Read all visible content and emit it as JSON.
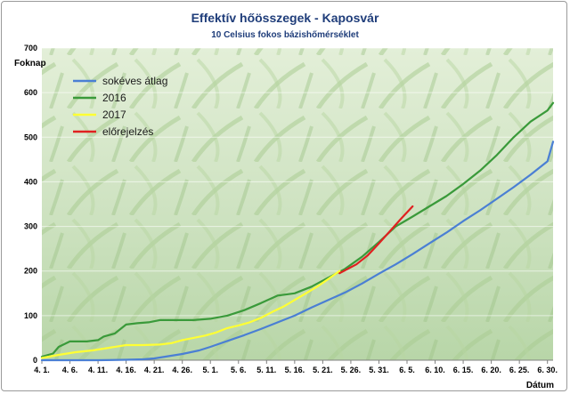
{
  "chart_data": {
    "type": "line",
    "title": "Effektív hőösszegek - Kaposvár",
    "subtitle": "10 Celsius fokos bázishőmérséklet",
    "ylabel": "Foknap",
    "xlabel": "Dátum",
    "ylim": [
      0,
      700
    ],
    "yticks": [
      0,
      100,
      200,
      300,
      400,
      500,
      600,
      700
    ],
    "x_range": [
      0,
      91
    ],
    "x_ticks": [
      {
        "day": 0,
        "label": "4. 1."
      },
      {
        "day": 5,
        "label": "4. 6."
      },
      {
        "day": 10,
        "label": "4. 11."
      },
      {
        "day": 15,
        "label": "4. 16."
      },
      {
        "day": 20,
        "label": "4. 21."
      },
      {
        "day": 25,
        "label": "4. 26."
      },
      {
        "day": 30,
        "label": "5. 1."
      },
      {
        "day": 35,
        "label": "5. 6."
      },
      {
        "day": 40,
        "label": "5. 11."
      },
      {
        "day": 45,
        "label": "5. 16."
      },
      {
        "day": 50,
        "label": "5. 21."
      },
      {
        "day": 55,
        "label": "5. 26."
      },
      {
        "day": 60,
        "label": "5. 31."
      },
      {
        "day": 65,
        "label": "6. 5."
      },
      {
        "day": 70,
        "label": "6. 10."
      },
      {
        "day": 75,
        "label": "6. 15."
      },
      {
        "day": 80,
        "label": "6. 20."
      },
      {
        "day": 85,
        "label": "6. 25."
      },
      {
        "day": 90,
        "label": "6. 30."
      }
    ],
    "legend_position": "top-left",
    "grid": true,
    "series": [
      {
        "name": "sokéves átlag",
        "color": "#4a7fd4",
        "points": [
          [
            0,
            0
          ],
          [
            5,
            0
          ],
          [
            10,
            0
          ],
          [
            15,
            1
          ],
          [
            18,
            2
          ],
          [
            20,
            4
          ],
          [
            22,
            8
          ],
          [
            25,
            14
          ],
          [
            28,
            22
          ],
          [
            30,
            30
          ],
          [
            33,
            43
          ],
          [
            36,
            56
          ],
          [
            39,
            70
          ],
          [
            42,
            85
          ],
          [
            45,
            100
          ],
          [
            48,
            118
          ],
          [
            51,
            135
          ],
          [
            54,
            152
          ],
          [
            57,
            172
          ],
          [
            60,
            194
          ],
          [
            63,
            215
          ],
          [
            66,
            238
          ],
          [
            69,
            262
          ],
          [
            72,
            286
          ],
          [
            75,
            312
          ],
          [
            78,
            336
          ],
          [
            81,
            362
          ],
          [
            84,
            388
          ],
          [
            87,
            416
          ],
          [
            90,
            446
          ],
          [
            91,
            490
          ]
        ]
      },
      {
        "name": "2016",
        "color": "#3a9a3a",
        "points": [
          [
            0,
            8
          ],
          [
            2,
            15
          ],
          [
            3,
            30
          ],
          [
            5,
            42
          ],
          [
            8,
            42
          ],
          [
            10,
            45
          ],
          [
            11,
            53
          ],
          [
            13,
            60
          ],
          [
            14,
            70
          ],
          [
            15,
            80
          ],
          [
            17,
            83
          ],
          [
            19,
            85
          ],
          [
            21,
            90
          ],
          [
            24,
            90
          ],
          [
            27,
            90
          ],
          [
            30,
            93
          ],
          [
            33,
            100
          ],
          [
            36,
            112
          ],
          [
            39,
            128
          ],
          [
            42,
            145
          ],
          [
            45,
            150
          ],
          [
            48,
            165
          ],
          [
            51,
            185
          ],
          [
            54,
            205
          ],
          [
            57,
            232
          ],
          [
            60,
            265
          ],
          [
            63,
            300
          ],
          [
            66,
            322
          ],
          [
            69,
            345
          ],
          [
            72,
            368
          ],
          [
            75,
            395
          ],
          [
            78,
            425
          ],
          [
            81,
            460
          ],
          [
            84,
            500
          ],
          [
            87,
            535
          ],
          [
            90,
            560
          ],
          [
            91,
            577
          ]
        ]
      },
      {
        "name": "2017",
        "color": "#ffff33",
        "points": [
          [
            0,
            5
          ],
          [
            3,
            12
          ],
          [
            6,
            18
          ],
          [
            9,
            22
          ],
          [
            12,
            28
          ],
          [
            15,
            34
          ],
          [
            18,
            34
          ],
          [
            21,
            35
          ],
          [
            23,
            38
          ],
          [
            25,
            45
          ],
          [
            27,
            50
          ],
          [
            29,
            55
          ],
          [
            31,
            62
          ],
          [
            33,
            72
          ],
          [
            35,
            78
          ],
          [
            37,
            85
          ],
          [
            39,
            95
          ],
          [
            41,
            108
          ],
          [
            43,
            120
          ],
          [
            45,
            135
          ],
          [
            47,
            150
          ],
          [
            49,
            165
          ],
          [
            51,
            182
          ],
          [
            53,
            200
          ]
        ]
      },
      {
        "name": "előrejelzés",
        "color": "#e02020",
        "points": [
          [
            53,
            195
          ],
          [
            56,
            215
          ],
          [
            58,
            235
          ],
          [
            60,
            262
          ],
          [
            62,
            290
          ],
          [
            64,
            318
          ],
          [
            66,
            345
          ]
        ]
      }
    ]
  }
}
